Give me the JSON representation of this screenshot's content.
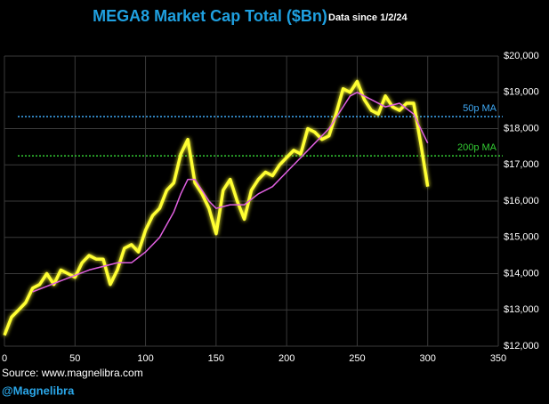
{
  "chart_data": {
    "type": "line",
    "title": "MEGA8 Market Cap Total ($Bn)",
    "subtitle": "Data since 1/2/24",
    "source": "Source: www.magnelibra.com",
    "handle": "@Magnelibra",
    "xlim": [
      0,
      350
    ],
    "xticks": [
      0,
      50,
      100,
      150,
      200,
      250,
      300,
      350
    ],
    "ylim": [
      12000,
      20000
    ],
    "yticks": [
      {
        "value": 12000,
        "label": "$12,000"
      },
      {
        "value": 13000,
        "label": "$13,000"
      },
      {
        "value": 14000,
        "label": "$14,000"
      },
      {
        "value": 15000,
        "label": "$15,000"
      },
      {
        "value": 16000,
        "label": "$16,000"
      },
      {
        "value": 17000,
        "label": "$17,000"
      },
      {
        "value": 18000,
        "label": "$18,000"
      },
      {
        "value": 19000,
        "label": "$19,000"
      },
      {
        "value": 20000,
        "label": "$20,000"
      }
    ],
    "grid": true,
    "series": [
      {
        "color": "#ffff33",
        "x": [
          0,
          5,
          10,
          15,
          20,
          25,
          30,
          35,
          40,
          45,
          50,
          55,
          60,
          65,
          70,
          75,
          80,
          85,
          90,
          95,
          100,
          105,
          110,
          115,
          120,
          125,
          130,
          135,
          140,
          145,
          150,
          155,
          160,
          165,
          170,
          175,
          180,
          185,
          190,
          195,
          200,
          205,
          210,
          215,
          220,
          225,
          230,
          235,
          240,
          245,
          250,
          255,
          260,
          265,
          270,
          275,
          280,
          285,
          290,
          295,
          300
        ],
        "values": [
          12300,
          12800,
          13000,
          13200,
          13600,
          13700,
          14000,
          13700,
          14100,
          14000,
          13900,
          14300,
          14500,
          14400,
          14400,
          13700,
          14100,
          14700,
          14800,
          14600,
          15200,
          15600,
          15800,
          16300,
          16500,
          17300,
          17700,
          16500,
          16200,
          15800,
          15100,
          16300,
          16600,
          16000,
          15500,
          16300,
          16600,
          16800,
          16700,
          17000,
          17200,
          17400,
          17300,
          18000,
          17900,
          17700,
          17800,
          18400,
          19100,
          19000,
          19300,
          18800,
          18500,
          18400,
          18900,
          18600,
          18500,
          18700,
          18700,
          17600,
          16400
        ]
      },
      {
        "color": "#e060e0",
        "x": [
          20,
          40,
          60,
          80,
          90,
          100,
          110,
          120,
          125,
          130,
          135,
          140,
          145,
          150,
          160,
          170,
          180,
          190,
          200,
          210,
          220,
          230,
          240,
          245,
          250,
          260,
          270,
          280,
          290,
          300
        ],
        "values": [
          13500,
          13800,
          14100,
          14300,
          14300,
          14600,
          15000,
          15700,
          16200,
          16600,
          16600,
          16300,
          16000,
          15800,
          15900,
          15900,
          16200,
          16400,
          16800,
          17200,
          17600,
          18000,
          18600,
          18900,
          19000,
          18800,
          18600,
          18700,
          18400,
          17600
        ]
      }
    ],
    "reference_lines": [
      {
        "label": "50p MA",
        "value": 18330,
        "color": "#3fa9f5"
      },
      {
        "label": "200p MA",
        "value": 17250,
        "color": "#33cc33"
      }
    ]
  }
}
